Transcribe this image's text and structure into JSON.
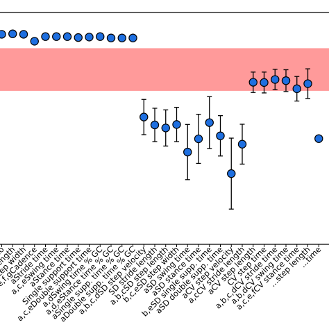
{
  "chart_data": {
    "type": "scatter",
    "title": "",
    "xlabel": "",
    "ylabel": "",
    "grid": false,
    "legend": "none",
    "error_bars": true,
    "ylim": [
      0,
      1
    ],
    "reference_band": {
      "low": 0.662,
      "high": 0.846,
      "color": "#ff9a9a"
    },
    "marker_color": "#1e6fe0",
    "categories": [
      "...io",
      "Stride length",
      "a,b,c,dStep width",
      "a,e,f,gCadence",
      "aStride time",
      "a,c,eSwing time",
      "aStance time",
      "Single support time",
      "a,c,eDouble support time",
      "a,dSwing time % GC",
      "a,d,eStance time % GC",
      "aSingle supp. time % GC",
      "aDouble supp. time % GC",
      "a,b,c,dSD step velocity",
      "SD stride length",
      "a,b,cSD step length",
      "b,c,eSD step width",
      "aSD swing time",
      "aSD stance time",
      "b,eSD single supp. time",
      "aSD double supp. time",
      "aCV step velocity",
      "a,cCV stride length",
      "aCV step length",
      "CV step time",
      "a,b,c,dCV stride time",
      "a,b,dCV swing time",
      "a,c,e,fCV stance time",
      "...step length",
      "...time"
    ],
    "values": [
      0.906,
      0.908,
      0.906,
      0.876,
      0.896,
      0.896,
      0.896,
      0.892,
      0.894,
      0.896,
      0.89,
      0.89,
      0.89,
      0.549,
      0.515,
      0.502,
      0.517,
      0.398,
      0.455,
      0.525,
      0.468,
      0.305,
      0.432,
      0.699,
      0.698,
      0.711,
      0.706,
      0.671,
      0.693,
      0.456
    ],
    "errors": [
      0,
      0,
      0,
      0,
      0,
      0,
      0,
      0,
      0,
      0,
      0,
      0,
      0,
      0.076,
      0.072,
      0.078,
      0.074,
      0.119,
      0.106,
      0.112,
      0.087,
      0.153,
      0.086,
      0.044,
      0.045,
      0.044,
      0.047,
      0.053,
      0.064,
      0.0
    ]
  }
}
